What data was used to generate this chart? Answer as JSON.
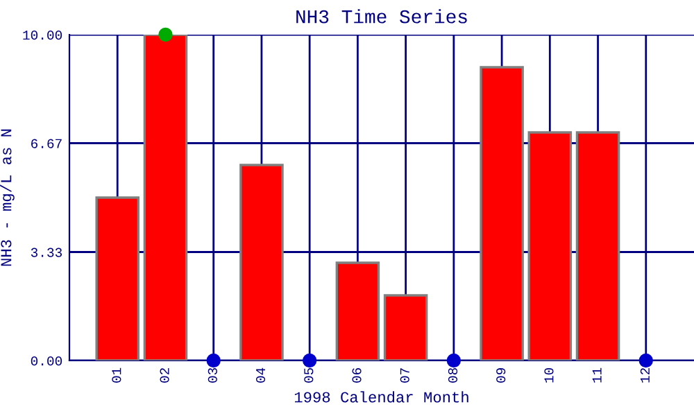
{
  "chart_data": {
    "type": "bar",
    "title": "NH3 Time Series",
    "xlabel": "1998 Calendar Month",
    "ylabel": "NH3 - mg/L as N",
    "categories": [
      "01",
      "02",
      "03",
      "04",
      "05",
      "06",
      "07",
      "08",
      "09",
      "10",
      "11",
      "12"
    ],
    "series": [
      {
        "color": "#ff0000",
        "values": [
          5.0,
          10.0,
          null,
          6.0,
          null,
          3.0,
          2.0,
          null,
          9.0,
          7.0,
          7.0,
          null
        ]
      },
      {
        "type": "scatter",
        "color": "#0000cc",
        "x": [
          "03",
          "05",
          "08",
          "12"
        ],
        "values": [
          0,
          0,
          0,
          0
        ]
      },
      {
        "type": "scatter",
        "color": "#00aa00",
        "x": [
          "02"
        ],
        "values": [
          10.0
        ]
      }
    ],
    "ylim": [
      0,
      10
    ],
    "yticks": [
      {
        "value": 0,
        "label": "0.00"
      },
      {
        "value": 3.33,
        "label": "3.33"
      },
      {
        "value": 6.67,
        "label": "6.67"
      },
      {
        "value": 10,
        "label": "10.00"
      }
    ],
    "grid": true,
    "marker": "circle"
  }
}
